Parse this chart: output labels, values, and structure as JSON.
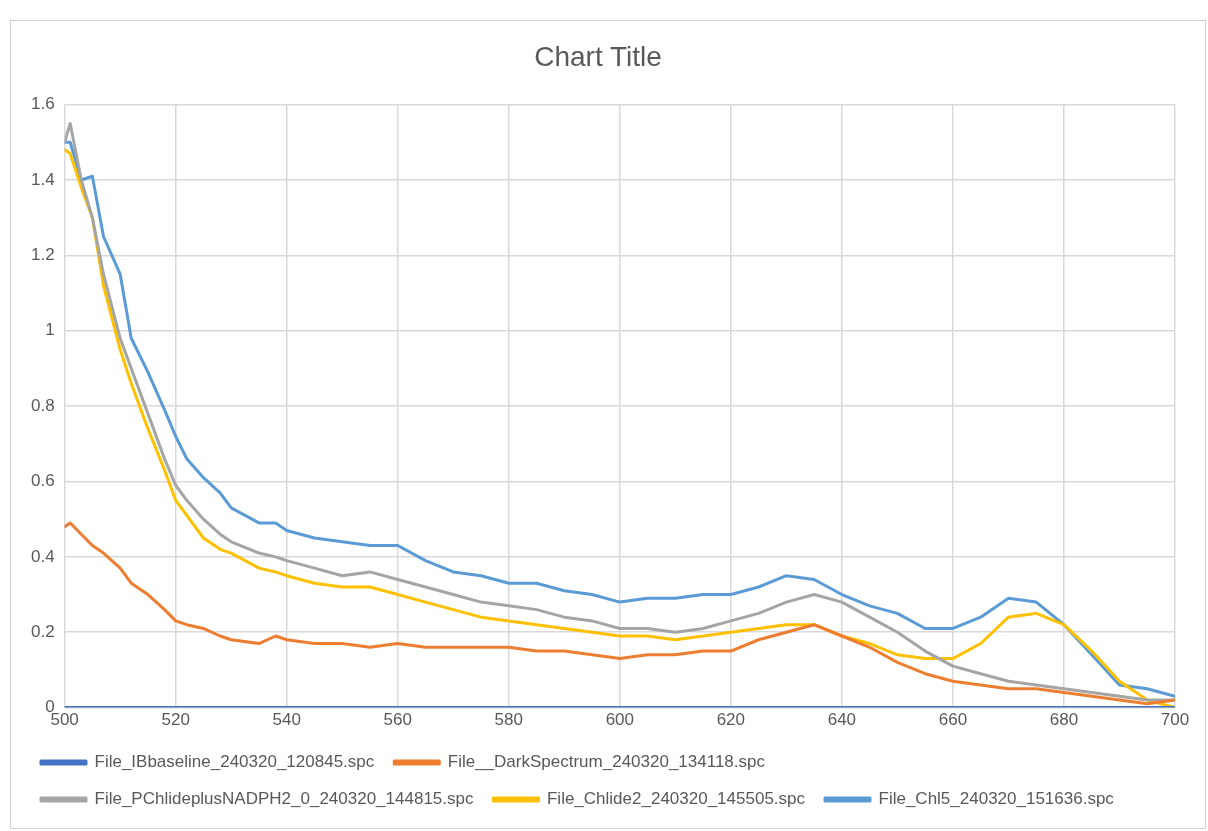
{
  "chart_data": {
    "type": "line",
    "title": "Chart Title",
    "x": [
      500,
      501,
      503,
      505,
      507,
      510,
      512,
      515,
      518,
      520,
      522,
      525,
      528,
      530,
      535,
      538,
      540,
      545,
      550,
      555,
      560,
      565,
      570,
      575,
      580,
      585,
      590,
      595,
      600,
      605,
      610,
      615,
      620,
      625,
      630,
      635,
      640,
      645,
      650,
      655,
      660,
      665,
      670,
      675,
      680,
      685,
      690,
      695,
      700
    ],
    "series": [
      {
        "name": "File_IBbaseline_240320_120845.spc",
        "color": "#4472c4",
        "values": [
          0,
          0,
          0,
          0,
          0,
          0,
          0,
          0,
          0,
          0,
          0,
          0,
          0,
          0,
          0,
          0,
          0,
          0,
          0,
          0,
          0,
          0,
          0,
          0,
          0,
          0,
          0,
          0,
          0,
          0,
          0,
          0,
          0,
          0,
          0,
          0,
          0,
          0,
          0,
          0,
          0,
          0,
          0,
          0,
          0,
          0,
          0,
          0,
          0
        ]
      },
      {
        "name": "File__DarkSpectrum_240320_134118.spc",
        "color": "#ed7d31",
        "values": [
          0.48,
          0.49,
          0.46,
          0.43,
          0.41,
          0.37,
          0.33,
          0.3,
          0.26,
          0.23,
          0.22,
          0.21,
          0.19,
          0.18,
          0.17,
          0.19,
          0.18,
          0.17,
          0.17,
          0.16,
          0.17,
          0.16,
          0.16,
          0.16,
          0.16,
          0.15,
          0.15,
          0.14,
          0.13,
          0.14,
          0.14,
          0.15,
          0.15,
          0.18,
          0.2,
          0.22,
          0.19,
          0.16,
          0.12,
          0.09,
          0.07,
          0.06,
          0.05,
          0.05,
          0.04,
          0.03,
          0.02,
          0.01,
          0.02
        ]
      },
      {
        "name": "File_PChlideplusNADPH2_0_240320_144815.spc",
        "color": "#a5a5a5",
        "values": [
          1.5,
          1.55,
          1.4,
          1.3,
          1.15,
          0.98,
          0.9,
          0.78,
          0.66,
          0.59,
          0.55,
          0.5,
          0.46,
          0.44,
          0.41,
          0.4,
          0.39,
          0.37,
          0.35,
          0.36,
          0.34,
          0.32,
          0.3,
          0.28,
          0.27,
          0.26,
          0.24,
          0.23,
          0.21,
          0.21,
          0.2,
          0.21,
          0.23,
          0.25,
          0.28,
          0.3,
          0.28,
          0.24,
          0.2,
          0.15,
          0.11,
          0.09,
          0.07,
          0.06,
          0.05,
          0.04,
          0.03,
          0.02,
          0.02
        ]
      },
      {
        "name": "File_Chlide2_240320_145505.spc",
        "color": "#ffc000",
        "values": [
          1.48,
          1.47,
          1.38,
          1.3,
          1.12,
          0.95,
          0.86,
          0.74,
          0.63,
          0.55,
          0.51,
          0.45,
          0.42,
          0.41,
          0.37,
          0.36,
          0.35,
          0.33,
          0.32,
          0.32,
          0.3,
          0.28,
          0.26,
          0.24,
          0.23,
          0.22,
          0.21,
          0.2,
          0.19,
          0.19,
          0.18,
          0.19,
          0.2,
          0.21,
          0.22,
          0.22,
          0.19,
          0.17,
          0.14,
          0.13,
          0.13,
          0.17,
          0.24,
          0.25,
          0.22,
          0.15,
          0.07,
          0.02,
          0.0
        ]
      },
      {
        "name": "File_Chl5_240320_151636.spc",
        "color": "#5b9bd5",
        "values": [
          1.5,
          1.5,
          1.4,
          1.41,
          1.25,
          1.15,
          0.98,
          0.89,
          0.79,
          0.72,
          0.66,
          0.61,
          0.57,
          0.53,
          0.49,
          0.49,
          0.47,
          0.45,
          0.44,
          0.43,
          0.43,
          0.39,
          0.36,
          0.35,
          0.33,
          0.33,
          0.31,
          0.3,
          0.28,
          0.29,
          0.29,
          0.3,
          0.3,
          0.32,
          0.35,
          0.34,
          0.3,
          0.27,
          0.25,
          0.21,
          0.21,
          0.24,
          0.29,
          0.28,
          0.22,
          0.14,
          0.06,
          0.05,
          0.03
        ]
      }
    ],
    "xlim": [
      500,
      700
    ],
    "xticks": [
      500,
      520,
      540,
      560,
      580,
      600,
      620,
      640,
      660,
      680,
      700
    ],
    "ylim": [
      0,
      1.6
    ],
    "yticks": [
      0,
      0.2,
      0.4,
      0.6,
      0.8,
      1,
      1.2,
      1.4,
      1.6
    ],
    "grid": true,
    "legend": "bottom",
    "marker": "none",
    "line_style": "solid"
  }
}
